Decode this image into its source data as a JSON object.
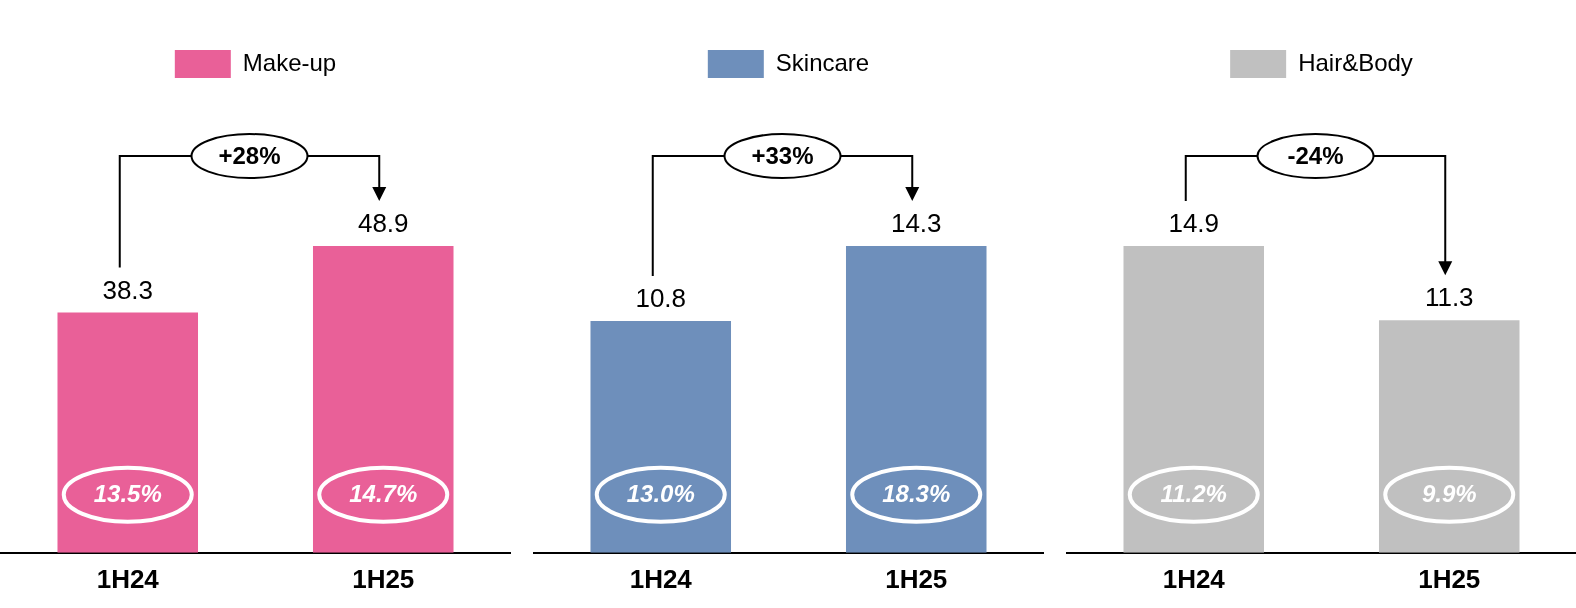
{
  "chart_data": [
    {
      "type": "bar",
      "categories": [
        "1H24",
        "1H25"
      ],
      "series": [
        {
          "name": "Make-up",
          "color": "#e96098",
          "values": [
            38.3,
            48.9
          ]
        }
      ],
      "data_labels": true,
      "legend": "top",
      "grid": false,
      "tick_labels": "x",
      "annotations": [
        "+28%",
        "13.5%",
        "14.7%"
      ]
    },
    {
      "type": "bar",
      "categories": [
        "1H24",
        "1H25"
      ],
      "series": [
        {
          "name": "Skincare",
          "color": "#6e8fbb",
          "values": [
            10.8,
            14.3
          ]
        }
      ],
      "data_labels": true,
      "legend": "top",
      "grid": false,
      "tick_labels": "x",
      "annotations": [
        "+33%",
        "13.0%",
        "18.3%"
      ]
    },
    {
      "type": "bar",
      "categories": [
        "1H24",
        "1H25"
      ],
      "series": [
        {
          "name": "Hair&Body",
          "color": "#c0c0c0",
          "values": [
            14.9,
            11.3
          ]
        }
      ],
      "data_labels": true,
      "legend": "top",
      "grid": false,
      "tick_labels": "x",
      "annotations": [
        "-24%",
        "11.2%",
        "9.9%"
      ]
    }
  ]
}
